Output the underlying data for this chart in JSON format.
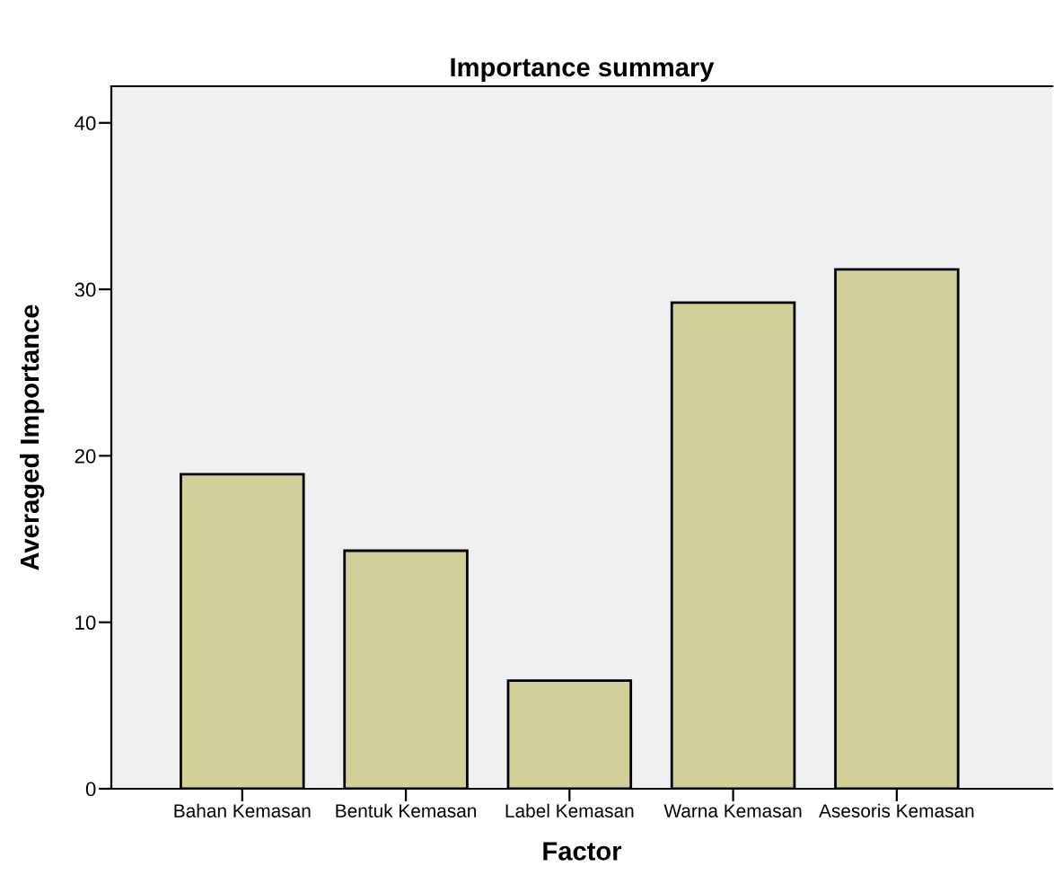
{
  "chart_data": {
    "type": "bar",
    "title": "Importance summary",
    "xlabel": "Factor",
    "ylabel": "Averaged Importance",
    "categories": [
      "Bahan Kemasan",
      "Bentuk Kemasan",
      "Label Kemasan",
      "Warna Kemasan",
      "Asesoris Kemasan"
    ],
    "values": [
      18.9,
      14.3,
      6.5,
      29.2,
      31.2
    ],
    "color": "#d3cf98",
    "ylim": [
      0,
      42.2
    ],
    "yticks": [
      0,
      10,
      20,
      30,
      40
    ],
    "grid": false
  }
}
